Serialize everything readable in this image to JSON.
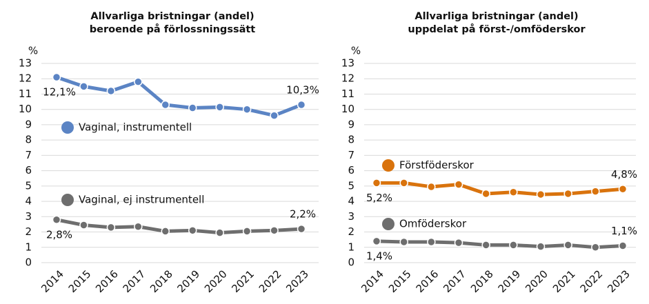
{
  "chart_data": [
    {
      "type": "line",
      "title": [
        "Allvarliga bristningar (andel)",
        "beroende på förlossningssätt"
      ],
      "y_label": "%",
      "categories": [
        "2014",
        "2015",
        "2016",
        "2017",
        "2018",
        "2019",
        "2020",
        "2021",
        "2022",
        "2023"
      ],
      "ylim": [
        0,
        13
      ],
      "yticks": [
        0,
        1,
        2,
        3,
        4,
        5,
        6,
        7,
        8,
        9,
        10,
        11,
        12,
        13
      ],
      "grid": true,
      "series": [
        {
          "name": "Vaginal, instrumentell",
          "color": "#5b84c4",
          "values": [
            12.1,
            11.5,
            11.2,
            11.8,
            10.3,
            10.1,
            10.15,
            10.0,
            9.6,
            10.3
          ],
          "value_labels": [
            "12,1%",
            null,
            null,
            null,
            null,
            null,
            null,
            null,
            null,
            "10,3%"
          ]
        },
        {
          "name": "Vaginal, ej instrumentell",
          "color": "#6e6e6e",
          "values": [
            2.8,
            2.45,
            2.3,
            2.35,
            2.05,
            2.1,
            1.95,
            2.05,
            2.1,
            2.2
          ],
          "value_labels": [
            "2,8%",
            null,
            null,
            null,
            null,
            null,
            null,
            null,
            null,
            "2,2%"
          ]
        }
      ]
    },
    {
      "type": "line",
      "title": [
        "Allvarliga bristningar (andel)",
        "uppdelat på först-/omföderskor"
      ],
      "y_label": "%",
      "categories": [
        "2014",
        "2015",
        "2016",
        "2017",
        "2018",
        "2019",
        "2020",
        "2021",
        "2022",
        "2023"
      ],
      "ylim": [
        0,
        13
      ],
      "yticks": [
        0,
        1,
        2,
        3,
        4,
        5,
        6,
        7,
        8,
        9,
        10,
        11,
        12,
        13
      ],
      "grid": true,
      "series": [
        {
          "name": "Förstföderskor",
          "color": "#d9730d",
          "values": [
            5.2,
            5.2,
            4.95,
            5.1,
            4.5,
            4.6,
            4.45,
            4.5,
            4.65,
            4.8
          ],
          "value_labels": [
            "5,2%",
            null,
            null,
            null,
            null,
            null,
            null,
            null,
            null,
            "4,8%"
          ]
        },
        {
          "name": "Omföderskor",
          "color": "#6e6e6e",
          "values": [
            1.4,
            1.35,
            1.35,
            1.3,
            1.15,
            1.15,
            1.05,
            1.15,
            1.0,
            1.1
          ],
          "value_labels": [
            "1,4%",
            null,
            null,
            null,
            null,
            null,
            null,
            null,
            null,
            "1,1%"
          ]
        }
      ]
    }
  ]
}
